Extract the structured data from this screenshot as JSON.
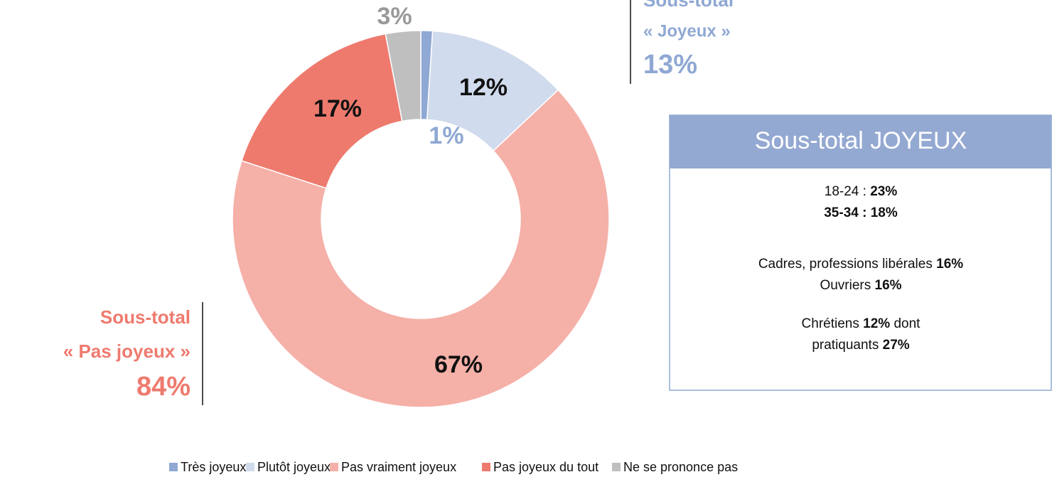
{
  "chart_data": {
    "type": "donut",
    "categories": [
      "Très joyeux",
      "Plutôt joyeux",
      "Pas vraiment joyeux",
      "Pas joyeux du tout",
      "Ne se prononce pas"
    ],
    "values": [
      1,
      12,
      67,
      17,
      3
    ],
    "value_labels": [
      "1%",
      "12%",
      "67%",
      "17%",
      "3%"
    ],
    "colors": [
      "#8fa8d4",
      "#d0dbed",
      "#f5b0a8",
      "#ee7a6e",
      "#bfbfbf"
    ],
    "label_colors": [
      "#8fa8d4",
      "#111111",
      "#111111",
      "#111111",
      "#999999"
    ],
    "legend": "bottom",
    "annotations": {
      "joyeux": [
        "Sous-total",
        "« Joyeux »",
        "13%"
      ],
      "pas_joyeux": [
        "Sous-total",
        "« Pas joyeux »",
        "84%"
      ]
    },
    "box": {
      "title": "Sous-total JOYEUX",
      "lines": [
        [
          {
            "text": "18-24 : ",
            "bold": false
          },
          {
            "text": "23%",
            "bold": true
          }
        ],
        [
          {
            "text": "35-34 : 18%",
            "bold": true
          }
        ],
        [
          {
            "text": "Cadres, professions libérales ",
            "bold": false
          },
          {
            "text": "16%",
            "bold": true
          }
        ],
        [
          {
            "text": "Ouvriers ",
            "bold": false
          },
          {
            "text": "16%",
            "bold": true
          }
        ],
        [
          {
            "text": "Chrétiens ",
            "bold": false
          },
          {
            "text": "12%",
            "bold": true
          },
          {
            "text": " dont",
            "bold": false
          }
        ],
        [
          {
            "text": "pratiquants ",
            "bold": false
          },
          {
            "text": "27%",
            "bold": true
          }
        ]
      ]
    }
  }
}
